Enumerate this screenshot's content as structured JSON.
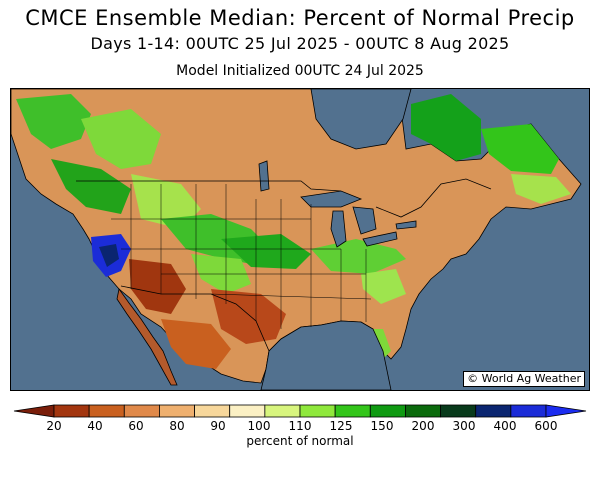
{
  "title": "CMCE Ensemble Median: Percent of Normal Precip",
  "subtitle": "Days 1-14: 00UTC 25 Jul 2025 - 00UTC 8 Aug 2025",
  "init_text": "Model Initialized 00UTC 24 Jul 2025",
  "credit": "© World Ag Weather",
  "colorbar": {
    "label": "percent of normal",
    "ticks": [
      "20",
      "40",
      "60",
      "80",
      "90",
      "100",
      "110",
      "125",
      "150",
      "200",
      "300",
      "400",
      "600"
    ],
    "colors": [
      "#7a1e0a",
      "#a3360f",
      "#c9601f",
      "#e0894a",
      "#efb06f",
      "#f7d79b",
      "#fbf0c4",
      "#d8f57e",
      "#8fe83c",
      "#33c51a",
      "#0f9a12",
      "#0a6a0c",
      "#083a1b",
      "#0a2570",
      "#1b2cd8",
      "#1b2cf0"
    ]
  },
  "colors": {
    "ocean": "#52718f",
    "lakes": "#52718f",
    "border": "#000000"
  }
}
